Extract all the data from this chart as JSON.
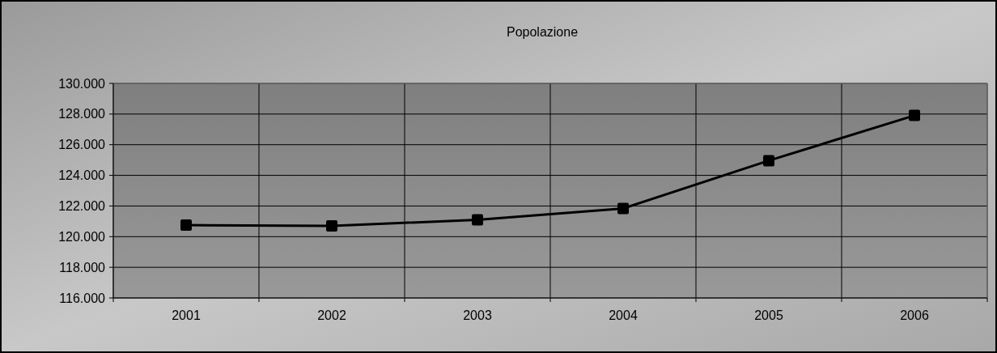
{
  "chart_data": {
    "type": "line",
    "title": "Popolazione",
    "categories": [
      "2001",
      "2002",
      "2003",
      "2004",
      "2005",
      "2006"
    ],
    "series": [
      {
        "color": "#000000",
        "values": [
          120750,
          120700,
          121100,
          121840,
          124960,
          127910
        ]
      }
    ],
    "ylim": [
      116000,
      130000
    ],
    "yticks": [
      {
        "value": 116000,
        "label": "116.000"
      },
      {
        "value": 118000,
        "label": "118.000"
      },
      {
        "value": 120000,
        "label": "120.000"
      },
      {
        "value": 122000,
        "label": "122.000"
      },
      {
        "value": 124000,
        "label": "124.000"
      },
      {
        "value": 126000,
        "label": "126.000"
      },
      {
        "value": 128000,
        "label": "128.000"
      },
      {
        "value": 130000,
        "label": "130.000"
      }
    ],
    "grid": true,
    "marker": "square",
    "line_style": "solid"
  }
}
